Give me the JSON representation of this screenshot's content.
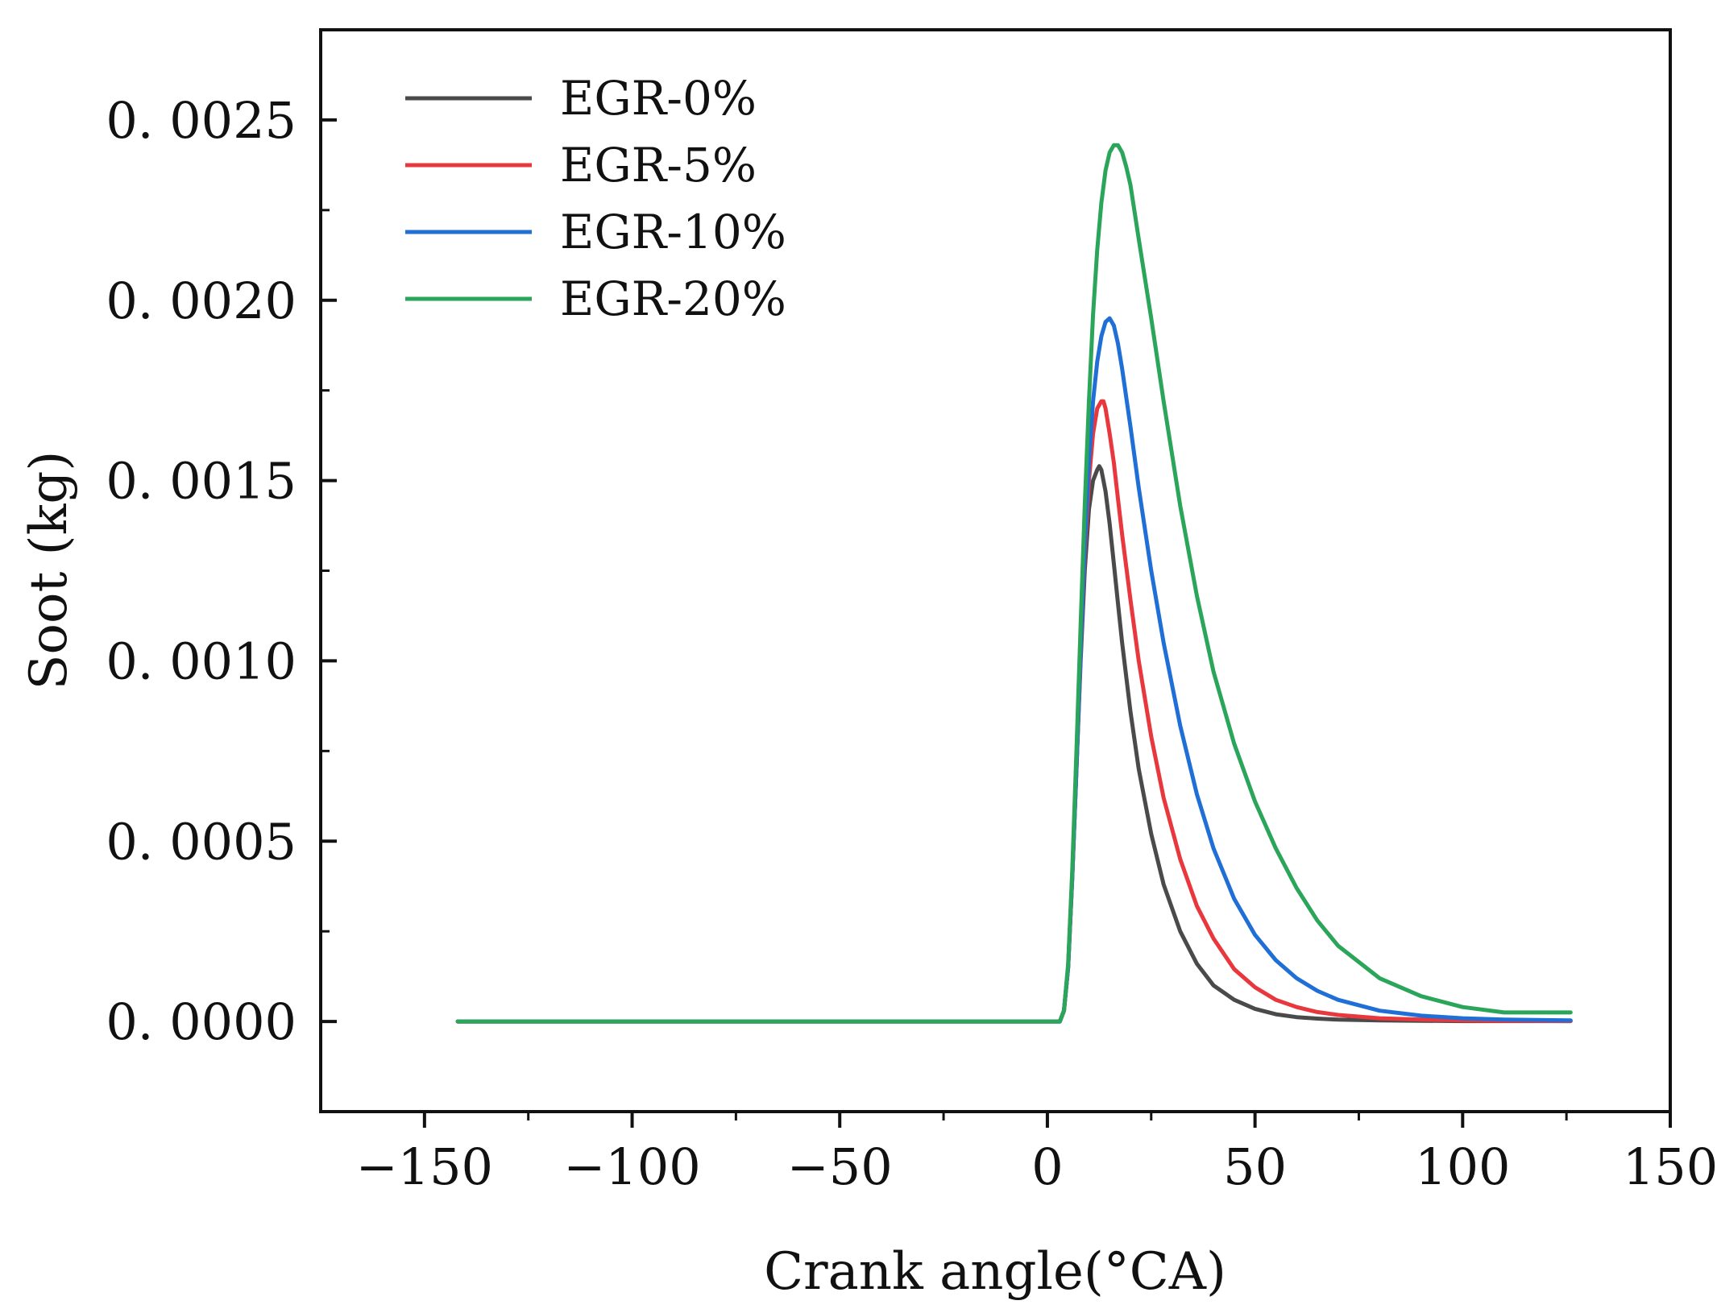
{
  "chart_data": {
    "type": "line",
    "title": "",
    "xlabel": "Crank angle(°CA)",
    "ylabel": "Soot (kg)",
    "xlim": [
      -175,
      150
    ],
    "ylim": [
      -0.00025,
      0.00275
    ],
    "xticks": [
      -150,
      -100,
      -50,
      0,
      50,
      100,
      150
    ],
    "xtick_labels": [
      "−150",
      "−100",
      "−50",
      "0",
      "50",
      "100",
      "150"
    ],
    "yticks": [
      0,
      0.0005,
      0.001,
      0.0015,
      0.002,
      0.0025
    ],
    "ytick_labels": [
      "0. 0000",
      "0. 0005",
      "0. 0010",
      "0. 0015",
      "0. 0020",
      "0. 0025"
    ],
    "legend_position": "top-left",
    "grid": false,
    "series": [
      {
        "name": "EGR-0%",
        "color": "#4a4a4a",
        "x": [
          -142,
          3,
          4,
          5,
          6,
          7,
          8,
          9,
          10,
          11,
          12,
          12.5,
          13,
          14,
          15,
          16,
          17,
          18,
          20,
          22,
          25,
          28,
          32,
          36,
          40,
          45,
          50,
          55,
          60,
          65,
          70,
          80,
          90,
          100,
          110,
          126
        ],
        "y": [
          0,
          0,
          3e-05,
          0.00015,
          0.0004,
          0.0007,
          0.001,
          0.00125,
          0.00142,
          0.0015,
          0.00153,
          0.00154,
          0.00153,
          0.00147,
          0.00138,
          0.00127,
          0.00116,
          0.00105,
          0.00086,
          0.0007,
          0.00052,
          0.00038,
          0.00025,
          0.00016,
          0.0001,
          6e-05,
          3.5e-05,
          2e-05,
          1.2e-05,
          8e-06,
          5e-06,
          3e-06,
          2e-06,
          1e-06,
          1e-06,
          1e-06
        ]
      },
      {
        "name": "EGR-5%",
        "color": "#e8383d",
        "x": [
          -142,
          3,
          4,
          5,
          6,
          7,
          8,
          9,
          10,
          11,
          12,
          13,
          13.5,
          14,
          15,
          16,
          17,
          18,
          20,
          22,
          25,
          28,
          32,
          36,
          40,
          45,
          50,
          55,
          60,
          65,
          70,
          80,
          90,
          100,
          110,
          126
        ],
        "y": [
          0,
          0,
          3e-05,
          0.00015,
          0.0004,
          0.0007,
          0.00102,
          0.0013,
          0.0015,
          0.00163,
          0.0017,
          0.00172,
          0.00172,
          0.0017,
          0.00163,
          0.00155,
          0.00145,
          0.00135,
          0.00117,
          0.001,
          0.00079,
          0.00062,
          0.00045,
          0.00032,
          0.00023,
          0.000145,
          9.5e-05,
          6e-05,
          4e-05,
          2.6e-05,
          1.8e-05,
          9e-06,
          5e-06,
          3e-06,
          2e-06,
          1e-06
        ]
      },
      {
        "name": "EGR-10%",
        "color": "#1f6fd6",
        "x": [
          -142,
          3,
          4,
          5,
          6,
          7,
          8,
          9,
          10,
          11,
          12,
          13,
          14,
          15,
          16,
          17,
          18,
          20,
          22,
          25,
          28,
          32,
          36,
          40,
          45,
          50,
          55,
          60,
          65,
          70,
          80,
          90,
          100,
          110,
          126
        ],
        "y": [
          0,
          0,
          3e-05,
          0.00015,
          0.0004,
          0.0007,
          0.00103,
          0.00132,
          0.00155,
          0.00172,
          0.00183,
          0.0019,
          0.00194,
          0.00195,
          0.00193,
          0.00188,
          0.00181,
          0.00165,
          0.00148,
          0.00125,
          0.00105,
          0.00082,
          0.00063,
          0.00048,
          0.00034,
          0.00024,
          0.00017,
          0.00012,
          8.5e-05,
          6e-05,
          3e-05,
          1.6e-05,
          9e-06,
          5e-06,
          3e-06
        ]
      },
      {
        "name": "EGR-20%",
        "color": "#2aa55a",
        "x": [
          -142,
          3,
          4,
          5,
          6,
          7,
          8,
          9,
          10,
          11,
          12,
          13,
          14,
          15,
          16,
          17,
          18,
          19,
          20,
          22,
          25,
          28,
          32,
          36,
          40,
          45,
          50,
          55,
          60,
          65,
          70,
          80,
          90,
          100,
          110,
          126
        ],
        "y": [
          0,
          0,
          3e-05,
          0.00016,
          0.00042,
          0.00075,
          0.0011,
          0.00143,
          0.00172,
          0.00196,
          0.00214,
          0.00227,
          0.00236,
          0.00241,
          0.00243,
          0.00243,
          0.00241,
          0.00237,
          0.00232,
          0.00217,
          0.00195,
          0.00172,
          0.00143,
          0.00118,
          0.00097,
          0.00077,
          0.00061,
          0.00048,
          0.00037,
          0.00028,
          0.00021,
          0.00012,
          7e-05,
          4e-05,
          2.5e-05,
          2.5e-05
        ]
      }
    ]
  }
}
